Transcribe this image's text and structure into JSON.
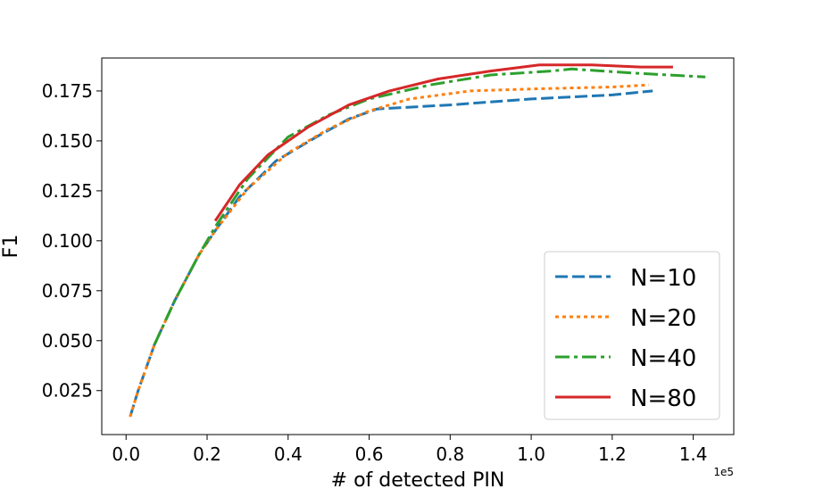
{
  "chart_data": {
    "type": "line",
    "title": "",
    "xlabel": "# of detected PIN",
    "ylabel": "F1",
    "x_offset_text": "1e5",
    "xlim": [
      -0.06,
      1.5
    ],
    "ylim": [
      0.003,
      0.1915
    ],
    "xticks": [
      0.0,
      0.2,
      0.4,
      0.6,
      0.8,
      1.0,
      1.2,
      1.4
    ],
    "xtick_labels": [
      "0.0",
      "0.2",
      "0.4",
      "0.6",
      "0.8",
      "1.0",
      "1.2",
      "1.4"
    ],
    "yticks": [
      0.025,
      0.05,
      0.075,
      0.1,
      0.125,
      0.15,
      0.175
    ],
    "ytick_labels": [
      "0.025",
      "0.050",
      "0.075",
      "0.100",
      "0.125",
      "0.150",
      "0.175"
    ],
    "grid": false,
    "legend_position": "lower-right",
    "series": [
      {
        "name": "N=10",
        "color": "#1f77b4",
        "style": "dashed",
        "x": [
          0.01,
          0.03,
          0.07,
          0.12,
          0.18,
          0.22,
          0.28,
          0.37,
          0.47,
          0.55,
          0.62,
          0.8,
          1.0,
          1.2,
          1.3
        ],
        "y": [
          0.012,
          0.025,
          0.048,
          0.07,
          0.093,
          0.105,
          0.122,
          0.14,
          0.152,
          0.161,
          0.166,
          0.168,
          0.171,
          0.173,
          0.175
        ]
      },
      {
        "name": "N=20",
        "color": "#ff7f0e",
        "style": "dotted",
        "x": [
          0.01,
          0.03,
          0.07,
          0.12,
          0.18,
          0.22,
          0.3,
          0.4,
          0.5,
          0.6,
          0.7,
          0.85,
          1.0,
          1.2,
          1.29
        ],
        "y": [
          0.012,
          0.025,
          0.048,
          0.07,
          0.093,
          0.105,
          0.126,
          0.144,
          0.156,
          0.165,
          0.171,
          0.175,
          0.176,
          0.177,
          0.178
        ]
      },
      {
        "name": "N=40",
        "color": "#2ca02c",
        "style": "dashdot",
        "x": [
          0.07,
          0.12,
          0.18,
          0.22,
          0.3,
          0.4,
          0.5,
          0.6,
          0.75,
          0.9,
          1.05,
          1.1,
          1.25,
          1.43
        ],
        "y": [
          0.048,
          0.07,
          0.093,
          0.107,
          0.131,
          0.152,
          0.163,
          0.171,
          0.178,
          0.183,
          0.185,
          0.186,
          0.184,
          0.182
        ]
      },
      {
        "name": "N=80",
        "color": "#d62728",
        "style": "solid",
        "x": [
          0.22,
          0.28,
          0.35,
          0.45,
          0.55,
          0.65,
          0.77,
          0.9,
          1.02,
          1.15,
          1.27,
          1.35
        ],
        "y": [
          0.11,
          0.128,
          0.143,
          0.157,
          0.168,
          0.175,
          0.181,
          0.185,
          0.188,
          0.188,
          0.187,
          0.187
        ]
      }
    ]
  }
}
